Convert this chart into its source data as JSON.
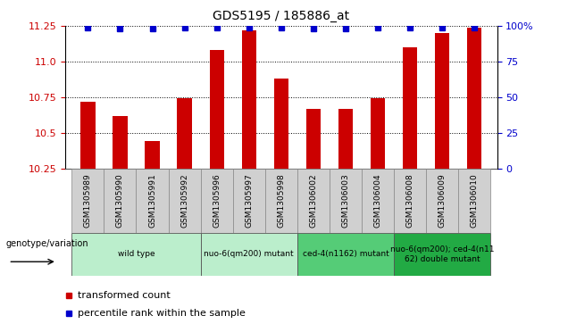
{
  "title": "GDS5195 / 185886_at",
  "samples": [
    "GSM1305989",
    "GSM1305990",
    "GSM1305991",
    "GSM1305992",
    "GSM1305996",
    "GSM1305997",
    "GSM1305998",
    "GSM1306002",
    "GSM1306003",
    "GSM1306004",
    "GSM1306008",
    "GSM1306009",
    "GSM1306010"
  ],
  "bar_values": [
    10.72,
    10.62,
    10.44,
    10.74,
    11.08,
    11.22,
    10.88,
    10.67,
    10.67,
    10.74,
    11.1,
    11.2,
    11.24
  ],
  "percentile_values": [
    99,
    98,
    98,
    99,
    99,
    99,
    99,
    98,
    98,
    99,
    99,
    99,
    99
  ],
  "bar_color": "#cc0000",
  "percentile_color": "#0000cc",
  "ylim_left": [
    10.25,
    11.25
  ],
  "ylim_right": [
    0,
    100
  ],
  "yticks_left": [
    10.25,
    10.5,
    10.75,
    11.0,
    11.25
  ],
  "yticks_right": [
    0,
    25,
    50,
    75,
    100
  ],
  "ytick_labels_right": [
    "0",
    "25",
    "50",
    "75",
    "100%"
  ],
  "groups": [
    {
      "label": "wild type",
      "start": 0,
      "end": 3,
      "color": "#bbeecc"
    },
    {
      "label": "nuo-6(qm200) mutant",
      "start": 4,
      "end": 6,
      "color": "#bbeecc"
    },
    {
      "label": "ced-4(n1162) mutant",
      "start": 7,
      "end": 9,
      "color": "#55cc77"
    },
    {
      "label": "nuo-6(qm200); ced-4(n11\n62) double mutant",
      "start": 10,
      "end": 12,
      "color": "#22aa44"
    }
  ],
  "legend_items": [
    {
      "label": "transformed count",
      "color": "#cc0000"
    },
    {
      "label": "percentile rank within the sample",
      "color": "#0000cc"
    }
  ],
  "xlabel_genotype": "genotype/variation",
  "background_color": "#ffffff",
  "plot_bg_color": "#ffffff",
  "sample_cell_color": "#d0d0d0",
  "bar_width": 0.45
}
